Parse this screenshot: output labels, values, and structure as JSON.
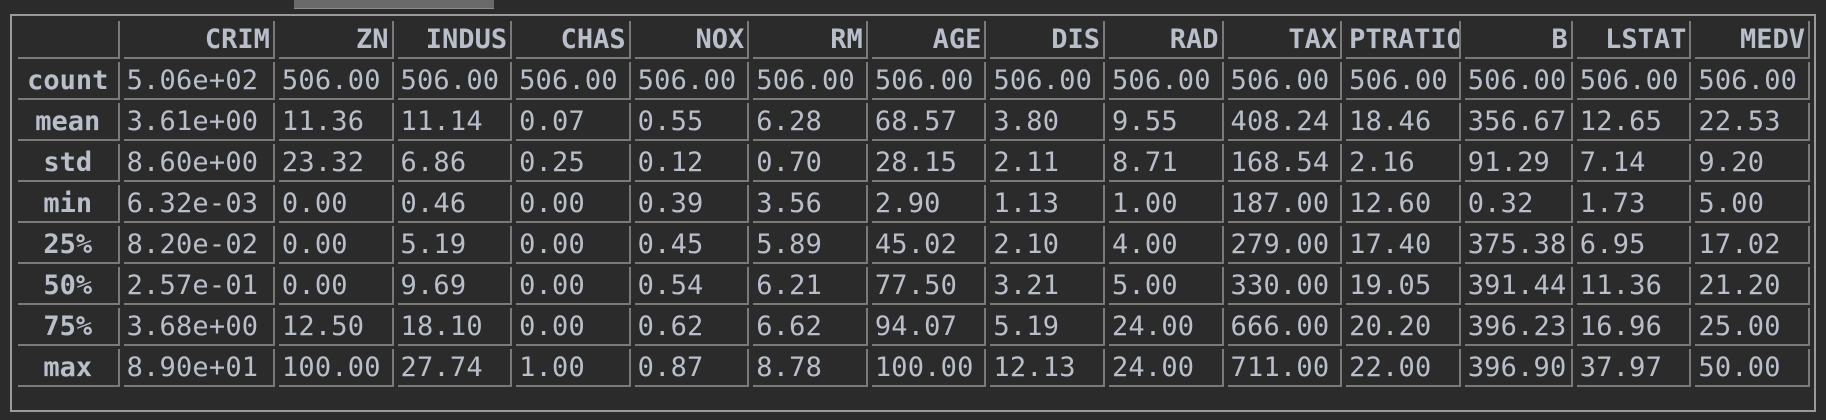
{
  "columns": [
    "CRIM",
    "ZN",
    "INDUS",
    "CHAS",
    "NOX",
    "RM",
    "AGE",
    "DIS",
    "RAD",
    "TAX",
    "PTRATIO",
    "B",
    "LSTAT",
    "MEDV"
  ],
  "rows": [
    {
      "label": "count",
      "values": [
        "5.06e+02",
        "506.00",
        "506.00",
        "506.00",
        "506.00",
        "506.00",
        "506.00",
        "506.00",
        "506.00",
        "506.00",
        "506.00",
        "506.00",
        "506.00",
        "506.00"
      ]
    },
    {
      "label": "mean",
      "values": [
        "3.61e+00",
        "11.36",
        "11.14",
        "0.07",
        "0.55",
        "6.28",
        "68.57",
        "3.80",
        "9.55",
        "408.24",
        "18.46",
        "356.67",
        "12.65",
        "22.53"
      ]
    },
    {
      "label": "std",
      "values": [
        "8.60e+00",
        "23.32",
        "6.86",
        "0.25",
        "0.12",
        "0.70",
        "28.15",
        "2.11",
        "8.71",
        "168.54",
        "2.16",
        "91.29",
        "7.14",
        "9.20"
      ]
    },
    {
      "label": "min",
      "values": [
        "6.32e-03",
        "0.00",
        "0.46",
        "0.00",
        "0.39",
        "3.56",
        "2.90",
        "1.13",
        "1.00",
        "187.00",
        "12.60",
        "0.32",
        "1.73",
        "5.00"
      ]
    },
    {
      "label": "25%",
      "values": [
        "8.20e-02",
        "0.00",
        "5.19",
        "0.00",
        "0.45",
        "5.89",
        "45.02",
        "2.10",
        "4.00",
        "279.00",
        "17.40",
        "375.38",
        "6.95",
        "17.02"
      ]
    },
    {
      "label": "50%",
      "values": [
        "2.57e-01",
        "0.00",
        "9.69",
        "0.00",
        "0.54",
        "6.21",
        "77.50",
        "3.21",
        "5.00",
        "330.00",
        "19.05",
        "391.44",
        "11.36",
        "21.20"
      ]
    },
    {
      "label": "75%",
      "values": [
        "3.68e+00",
        "12.50",
        "18.10",
        "0.00",
        "0.62",
        "6.62",
        "94.07",
        "5.19",
        "24.00",
        "666.00",
        "20.20",
        "396.23",
        "16.96",
        "25.00"
      ]
    },
    {
      "label": "max",
      "values": [
        "8.90e+01",
        "100.00",
        "27.74",
        "1.00",
        "0.87",
        "8.78",
        "100.00",
        "12.13",
        "24.00",
        "711.00",
        "22.00",
        "396.90",
        "37.97",
        "50.00"
      ]
    }
  ],
  "colors": {
    "background": "#2b2b2b",
    "text": "#b9bfca",
    "grid": "#7a7a7a"
  }
}
